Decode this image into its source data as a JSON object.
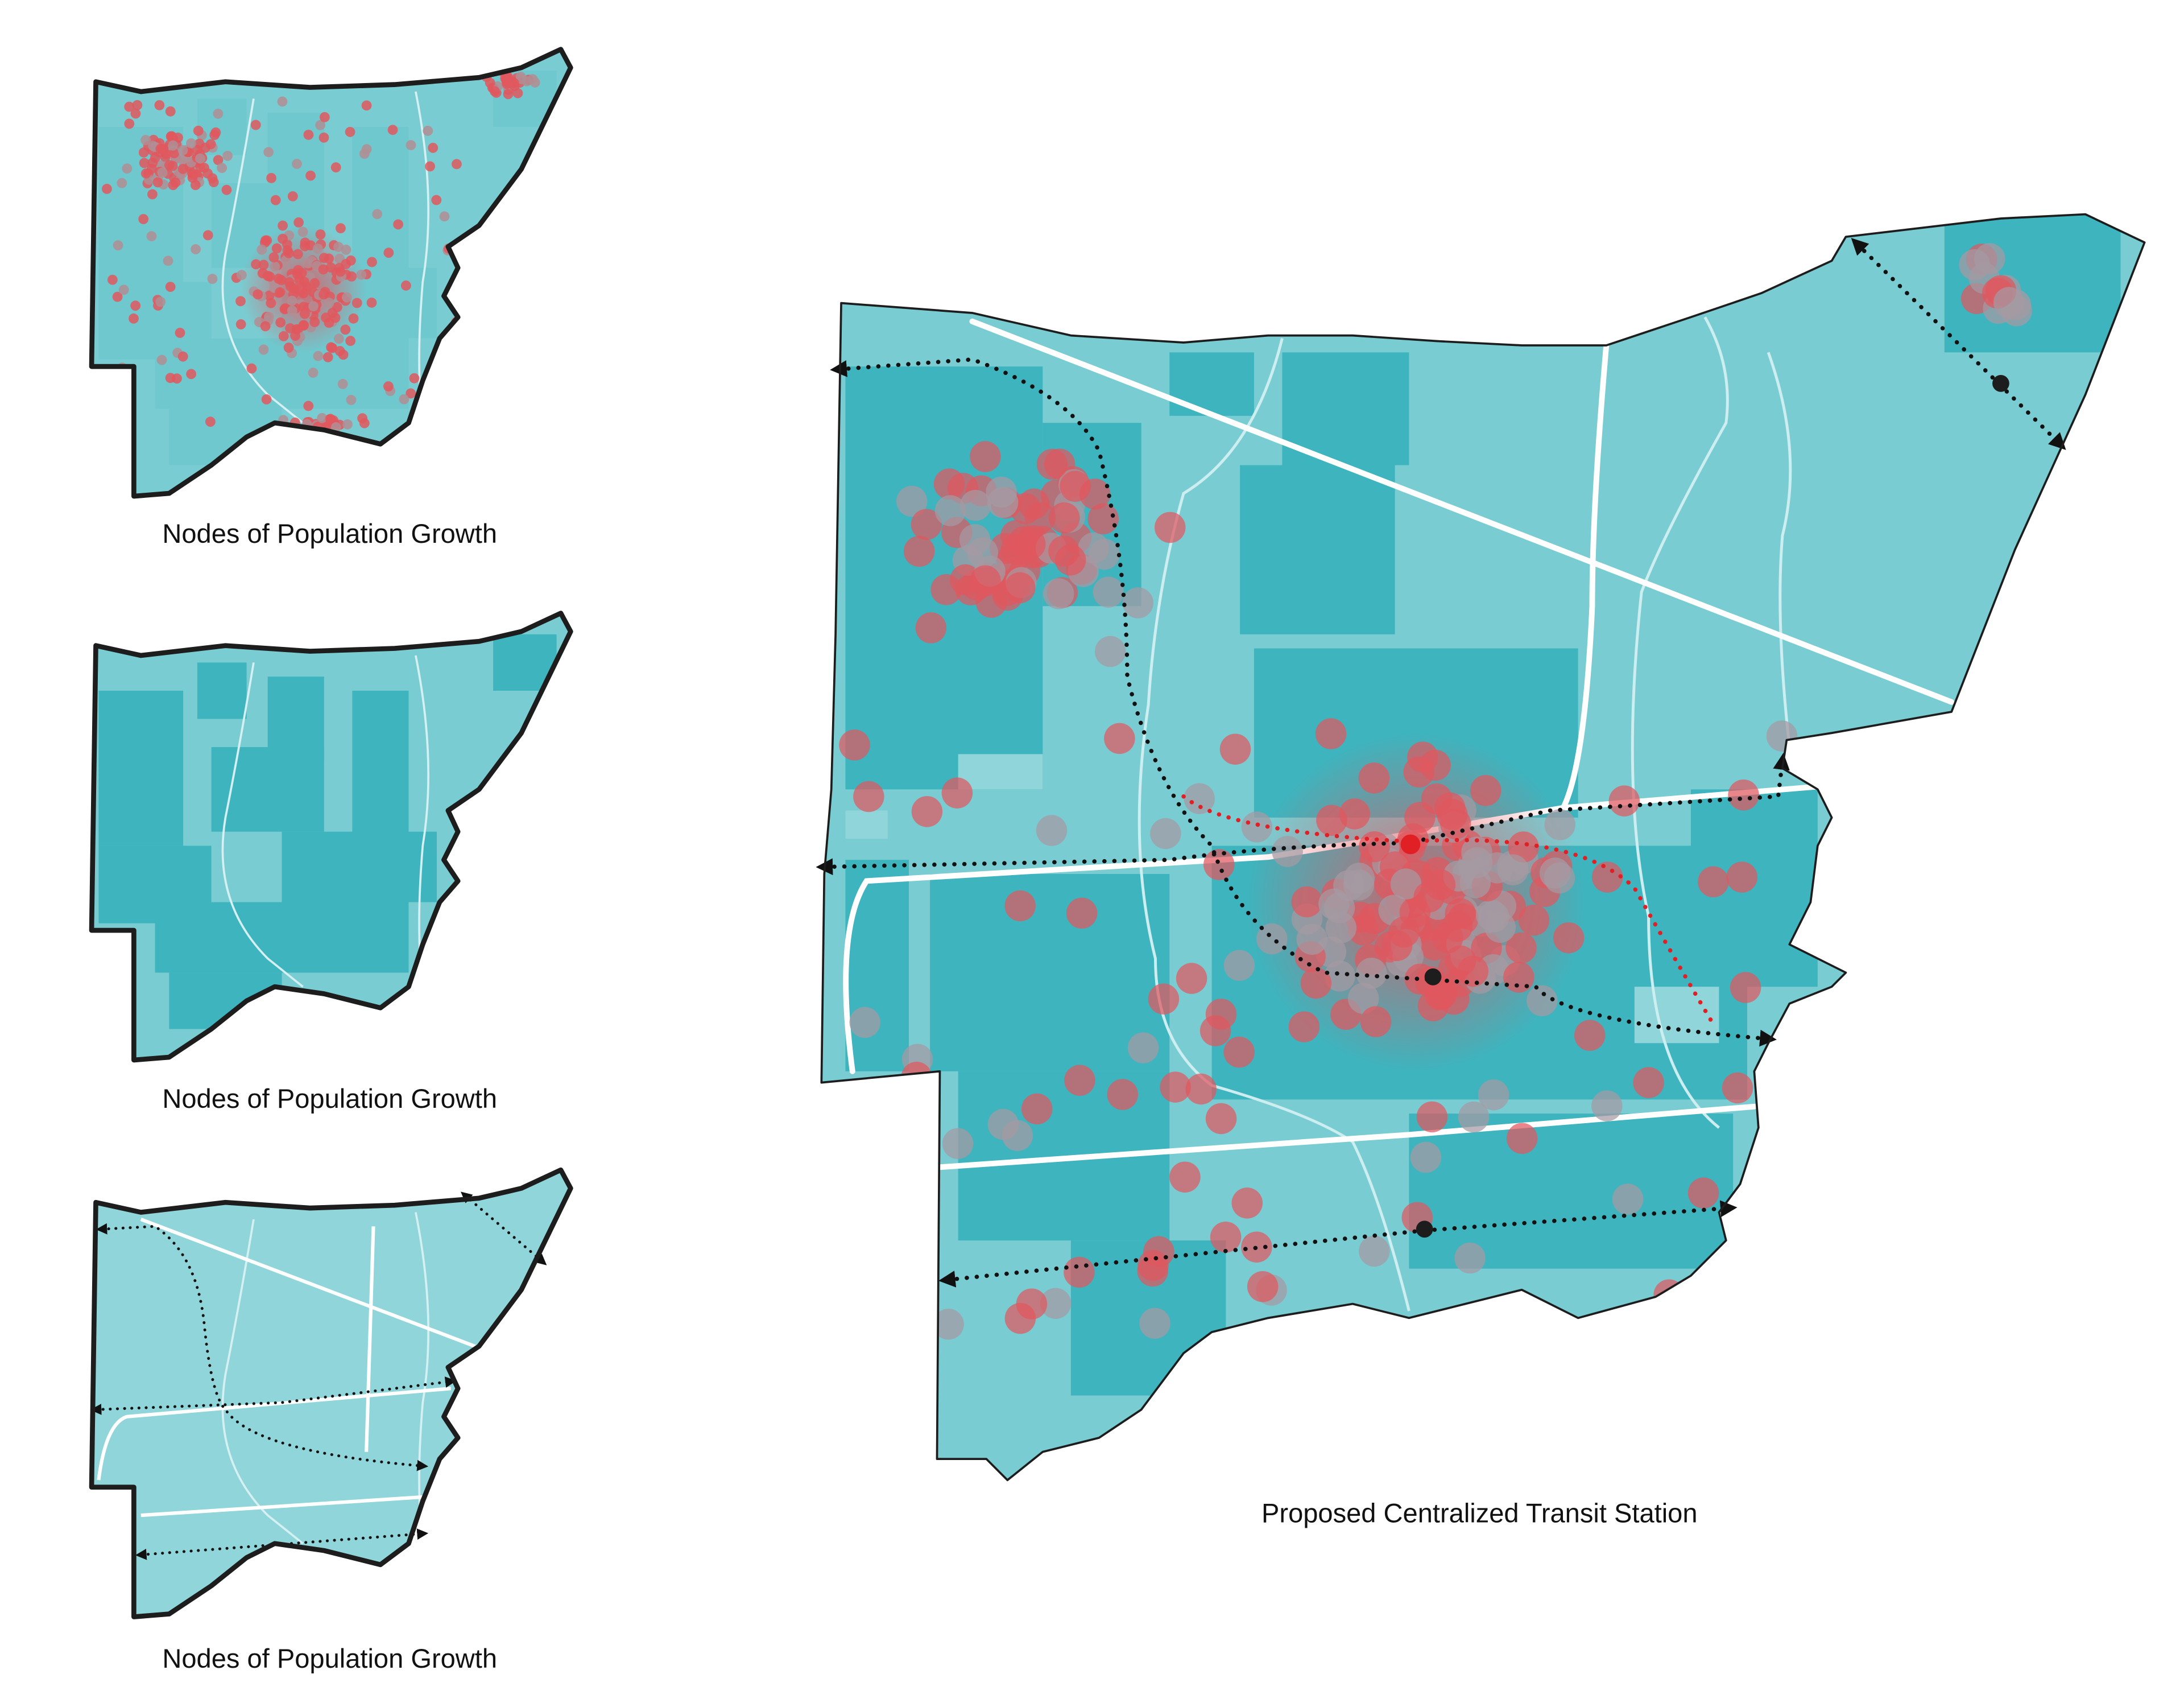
{
  "panels": [
    {
      "caption": "Nodes of Population Growth"
    },
    {
      "caption": "Nodes of Population Growth"
    },
    {
      "caption": "Nodes of Population Growth"
    }
  ],
  "main": {
    "caption": "Proposed Centralized Transit Station"
  }
}
